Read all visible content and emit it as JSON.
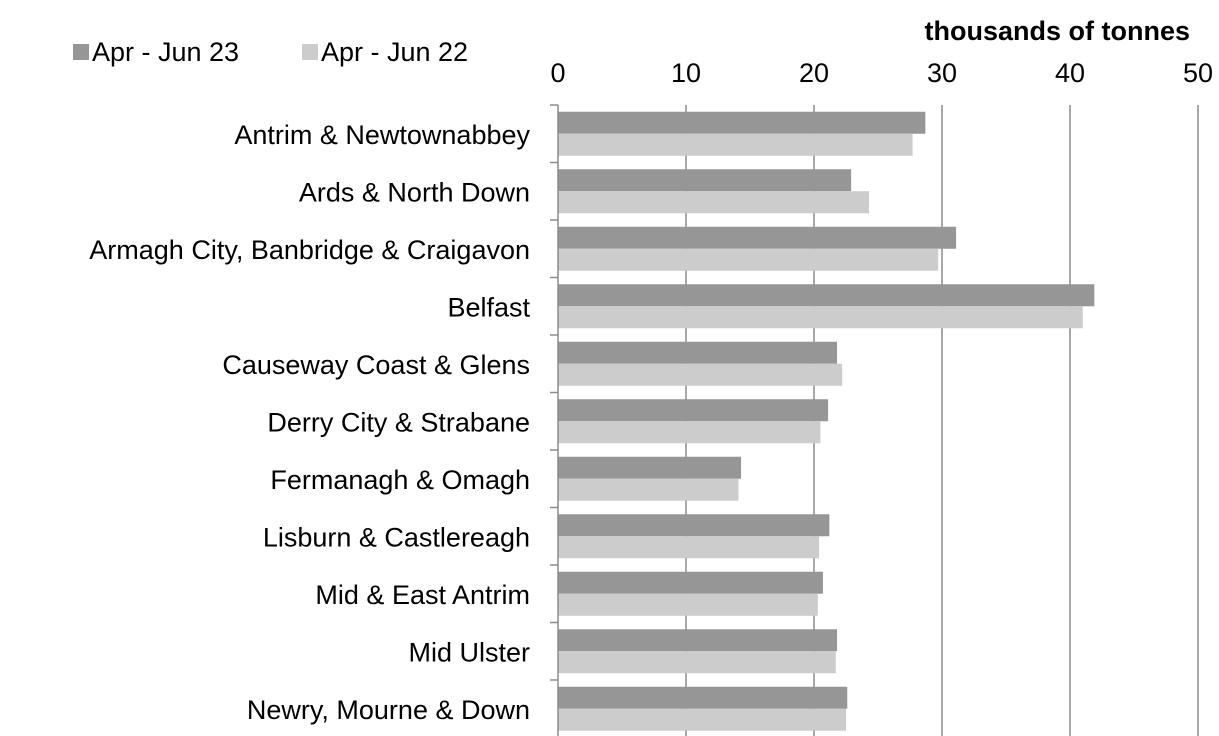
{
  "chart_data": {
    "type": "bar",
    "orientation": "horizontal",
    "unit_label": "thousands of tonnes",
    "categories": [
      "Antrim & Newtownabbey",
      "Ards & North Down",
      "Armagh City, Banbridge & Craigavon",
      "Belfast",
      "Causeway Coast & Glens",
      "Derry City & Strabane",
      "Fermanagh & Omagh",
      "Lisburn & Castlereagh",
      "Mid & East Antrim",
      "Mid Ulster",
      "Newry, Mourne & Down"
    ],
    "series": [
      {
        "name": "Apr - Jun 23",
        "color": "#969696",
        "values": [
          28.7,
          22.9,
          31.1,
          41.9,
          21.8,
          21.1,
          14.3,
          21.2,
          20.7,
          21.8,
          22.6
        ]
      },
      {
        "name": "Apr - Jun 22",
        "color": "#cccccc",
        "values": [
          27.7,
          24.3,
          29.7,
          41.0,
          22.2,
          20.5,
          14.1,
          20.4,
          20.3,
          21.7,
          22.5
        ]
      }
    ],
    "x_ticks": [
      0,
      10,
      20,
      30,
      40,
      50
    ],
    "xlim": [
      0,
      50
    ],
    "x_axis_position": "top",
    "grid": true,
    "legend_position": "top-left"
  }
}
